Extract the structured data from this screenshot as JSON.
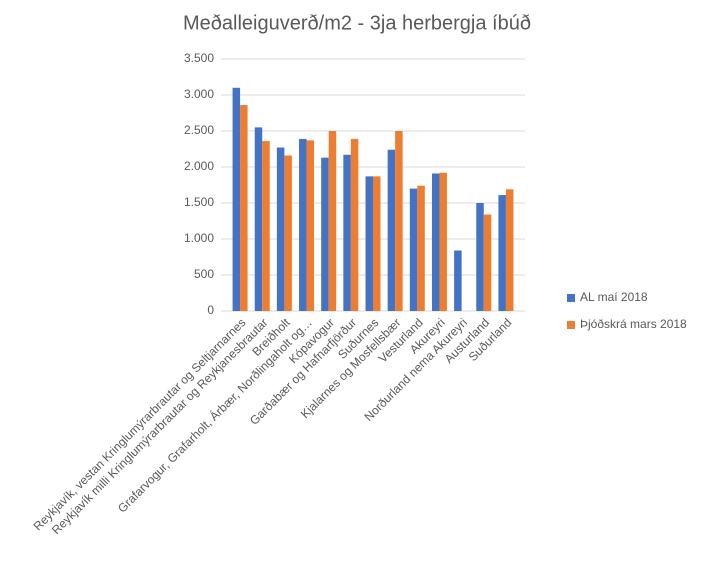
{
  "chart_data": {
    "type": "bar",
    "title": "Meðalleiguverð/m2 - 3ja herbergja íbúð",
    "categories": [
      "Reykjavík, vestan Kringlumýrarbrautar og Seltjarnarnes",
      "Reykjavík milli Kringlumýrarbrautar og Reykjanesbrautar",
      "Breiðholt",
      "Grafarvogur, Grafarholt, Árbær, Norðlingaholt og…",
      "Kópavogur",
      "Garðabær og Hafnarfjörður",
      "Suðurnes",
      "Kjalarnes og Mosfellsbær",
      "Vesturland",
      "Akureyri",
      "Norðurland nema Akureyri",
      "Austurland",
      "Suðurland"
    ],
    "series": [
      {
        "name": "AL maí 2018",
        "color": "#4472c4",
        "values": [
          3100,
          2550,
          2270,
          2390,
          2130,
          2170,
          1870,
          2240,
          1700,
          1910,
          840,
          1500,
          1610
        ]
      },
      {
        "name": "Þjóðskrá mars 2018",
        "color": "#ed7d31",
        "values": [
          2860,
          2360,
          2160,
          2370,
          2500,
          2390,
          1870,
          2500,
          1740,
          1920,
          null,
          1340,
          1690
        ]
      }
    ],
    "ylim": [
      0,
      3500
    ],
    "yticks": [
      0,
      500,
      {
        "value": 1000,
        "label": "1.000"
      },
      {
        "value": 1500,
        "label": "1.500"
      },
      {
        "value": 2000,
        "label": "2.000"
      },
      {
        "value": 2500,
        "label": "2.500"
      },
      {
        "value": 3000,
        "label": "3.000"
      },
      {
        "value": 3500,
        "label": "3.500"
      }
    ],
    "grid": true,
    "legend": "right"
  }
}
